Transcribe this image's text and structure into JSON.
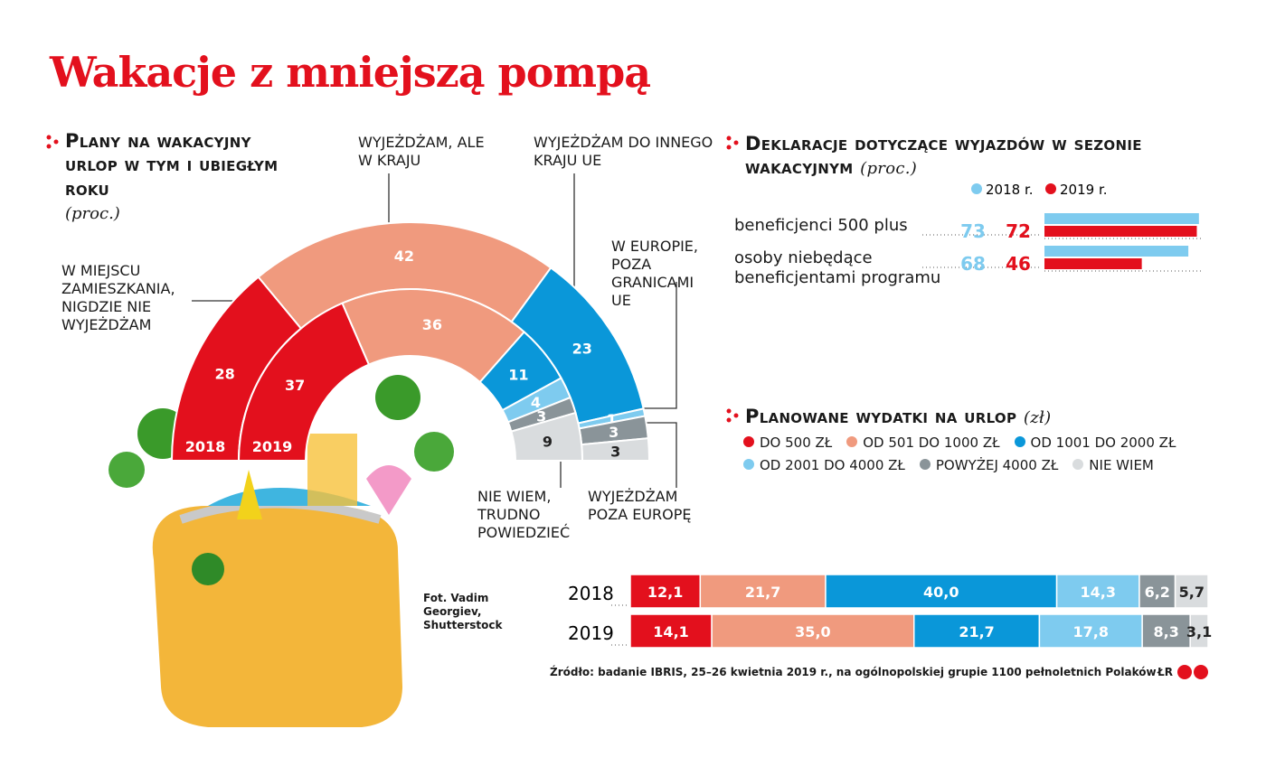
{
  "title": "Wakacje z mniejszą pompą",
  "source": "Źródło: badanie IBRIS, 25–26 kwietnia 2019 r., na ogólnopolskiej grupie 1100 pełnoletnich Polaków",
  "photo_credit": "Fot. Vadim Georgiev, Shutterstock",
  "logo": "ŁR",
  "chart_data": [
    {
      "type": "half-donut",
      "title": "Plany na wakacyjny urlop w tym i ubiegłym roku",
      "subtitle": "(proc.)",
      "categories": [
        "W MIEJSCU ZAMIESZKANIA, NIGDZIE NIE WYJEŻDŻAM",
        "WYJEŻDŻAM, ALE W KRAJU",
        "WYJEŻDŻAM DO INNEGO KRAJU UE",
        "W EUROPIE, POZA GRANICAMI UE",
        "WYJEŻDŻAM POZA EUROPĘ",
        "NIE WIEM, TRUDNO POWIEDZIEĆ"
      ],
      "colors": [
        "#e3101d",
        "#f09a7e",
        "#0a97d9",
        "#7ecbef",
        "#8a9499",
        "#d9dcde"
      ],
      "series": [
        {
          "name": "2018",
          "values": [
            28,
            42,
            23,
            1,
            3,
            3
          ]
        },
        {
          "name": "2019",
          "values": [
            37,
            36,
            11,
            4,
            3,
            9
          ]
        }
      ]
    },
    {
      "type": "hbar",
      "title": "Deklaracje dotyczące wyjazdów w sezonie wakacyjnym",
      "subtitle": "(proc.)",
      "categories": [
        "beneficjenci 500 plus",
        "osoby niebędące beneficjentami programu"
      ],
      "series": [
        {
          "name": "2018 r.",
          "color": "#7ecbef",
          "values": [
            73,
            68
          ]
        },
        {
          "name": "2019 r.",
          "color": "#e3101d",
          "values": [
            72,
            46
          ]
        }
      ]
    },
    {
      "type": "stacked-hbar",
      "title": "Planowane wydatki na urlop",
      "subtitle": "(zł)",
      "categories": [
        "2018",
        "2019"
      ],
      "series": [
        {
          "name": "DO 500 ZŁ",
          "color": "#e3101d",
          "values": [
            12.1,
            14.1
          ],
          "value_labels": [
            "12,1",
            "14,1"
          ]
        },
        {
          "name": "OD 501 DO 1000 ZŁ",
          "color": "#f09a7e",
          "values": [
            21.7,
            35.0
          ],
          "value_labels": [
            "21,7",
            "35,0"
          ]
        },
        {
          "name": "OD 1001 DO 2000 ZŁ",
          "color": "#0a97d9",
          "values": [
            40.0,
            21.7
          ],
          "value_labels": [
            "40,0",
            "21,7"
          ]
        },
        {
          "name": "OD 2001 DO 4000 ZŁ",
          "color": "#7ecbef",
          "values": [
            14.3,
            17.8
          ],
          "value_labels": [
            "14,3",
            "17,8"
          ]
        },
        {
          "name": "POWYŻEJ 4000 ZŁ",
          "color": "#8a9499",
          "values": [
            6.2,
            8.3
          ],
          "value_labels": [
            "6,2",
            "8,3"
          ]
        },
        {
          "name": "NIE WIEM",
          "color": "#d9dcde",
          "values": [
            5.7,
            3.1
          ],
          "value_labels": [
            "5,7",
            "3,1"
          ]
        }
      ]
    }
  ]
}
